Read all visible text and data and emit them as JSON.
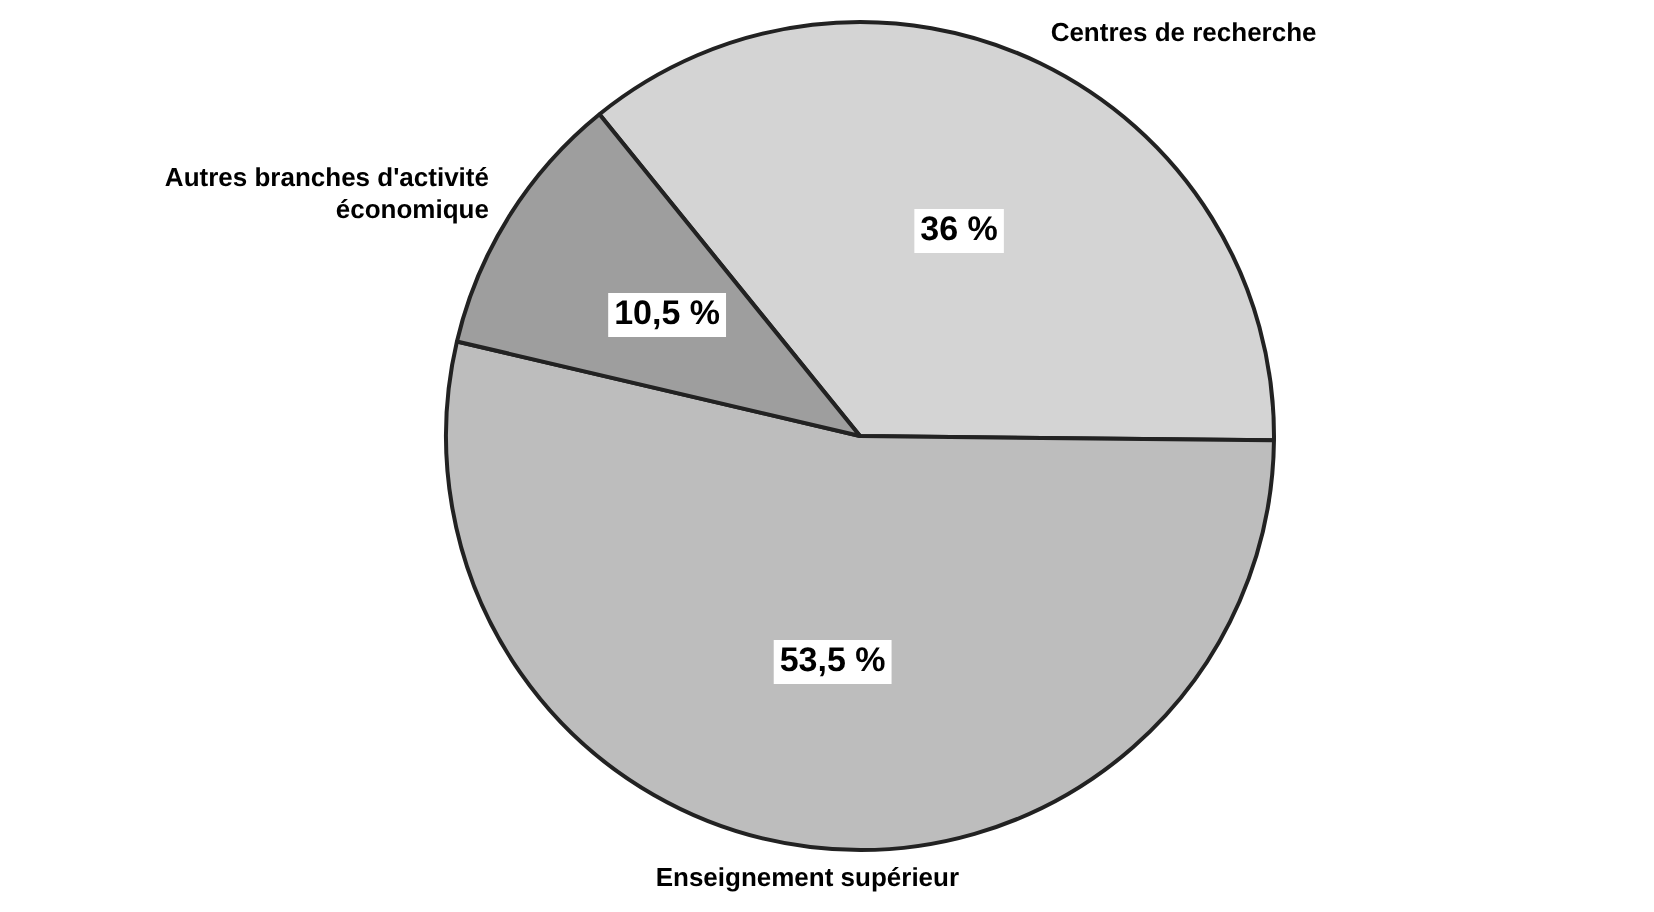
{
  "chart_data": {
    "type": "pie",
    "categories": [
      "Centres de recherche",
      "Enseignement supérieur",
      "Autres branches d'activité économique"
    ],
    "values": [
      36,
      53.5,
      10.5
    ],
    "value_labels": [
      "36 %",
      "53,5 %",
      "10,5 %"
    ],
    "colors": [
      "#d4d4d4",
      "#bdbdbd",
      "#9e9e9e"
    ],
    "legend": false
  }
}
